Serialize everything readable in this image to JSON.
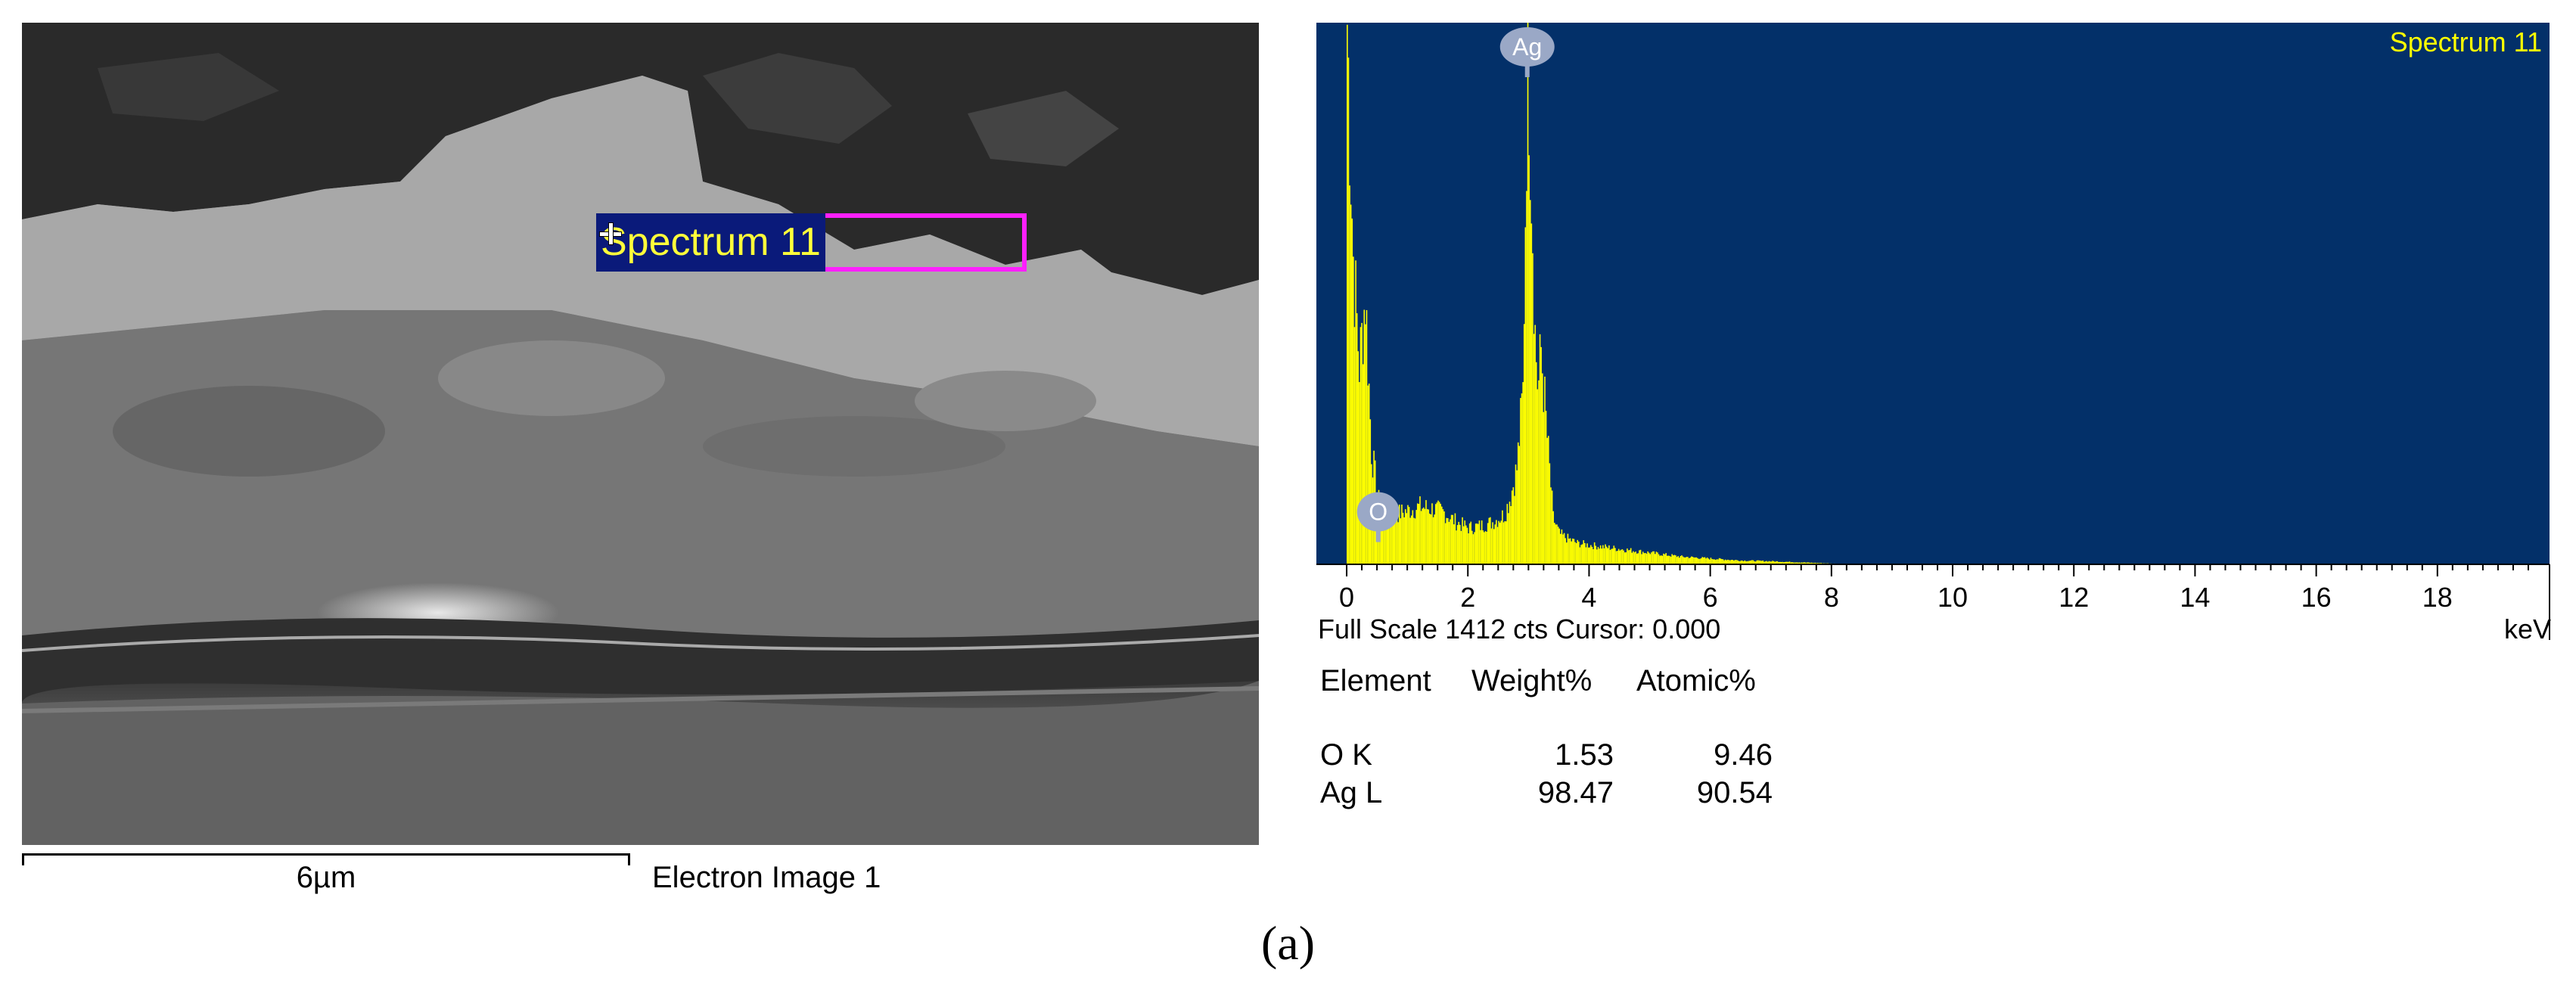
{
  "sem_image": {
    "spectrum_label": "Spectrum 11",
    "scale_bar_label": "6µm",
    "image_caption": "Electron Image 1"
  },
  "chart_data": {
    "type": "bar",
    "title": "Spectrum 11",
    "xlabel": "keV",
    "ylabel": "",
    "xlim": [
      -0.5,
      19.85
    ],
    "ylim": [
      0,
      1412
    ],
    "x_ticks": [
      0,
      2,
      4,
      6,
      8,
      10,
      12,
      14,
      16,
      18
    ],
    "background_color": "#033069",
    "bar_color": "#ffff00",
    "peak_markers": [
      {
        "label": "O",
        "x": 0.52,
        "y": 200
      },
      {
        "label": "Ag",
        "x": 2.98,
        "y": 1412
      }
    ],
    "series": [
      {
        "x": [
          0.0,
          0.1,
          0.2,
          0.3,
          0.4,
          0.5,
          0.6,
          0.8,
          1.0,
          1.2,
          1.4,
          1.6,
          1.8,
          2.0,
          2.2,
          2.4,
          2.5,
          2.6,
          2.7,
          2.8,
          2.9,
          2.98,
          3.05,
          3.1,
          3.15,
          3.2,
          3.3,
          3.4,
          3.5,
          3.6,
          3.8,
          4.0,
          4.5,
          5.0,
          5.5,
          6.0,
          6.5,
          7.0,
          7.5,
          8.0,
          8.5,
          10.0,
          15.0,
          19.5
        ],
        "values": [
          1412,
          800,
          520,
          700,
          300,
          180,
          100,
          130,
          140,
          150,
          145,
          135,
          110,
          95,
          100,
          110,
          120,
          130,
          180,
          250,
          450,
          1412,
          950,
          600,
          450,
          560,
          330,
          120,
          80,
          70,
          55,
          50,
          40,
          30,
          20,
          15,
          10,
          8,
          5,
          2,
          1,
          0,
          0,
          0
        ]
      }
    ],
    "footer_left": "Full Scale 1412 cts Cursor: 0.000"
  },
  "results_table": {
    "columns": [
      "Element",
      "Weight%",
      "Atomic%"
    ],
    "rows": [
      {
        "element": "O K",
        "weight": "1.53",
        "atomic": "9.46"
      },
      {
        "element": "Ag L",
        "weight": "98.47",
        "atomic": "90.54"
      }
    ]
  },
  "panel_label": "(a)"
}
